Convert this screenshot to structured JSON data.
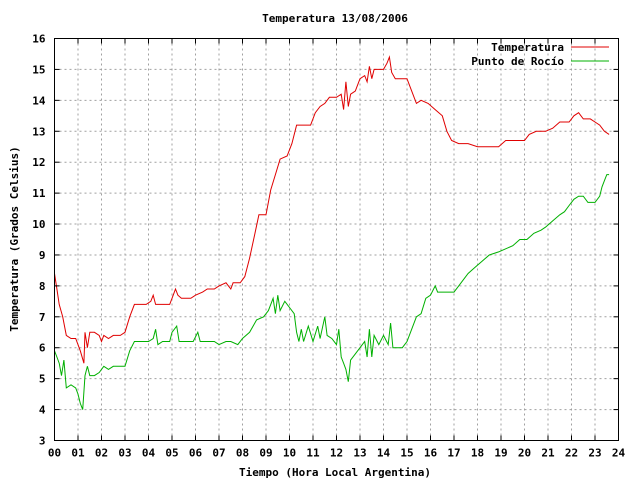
{
  "chart_data": {
    "type": "line",
    "title": "Temperatura 13/08/2006",
    "xlabel": "Tiempo (Hora Local Argentina)",
    "ylabel": "Temperatura (Grados Celsius)",
    "xlim": [
      0,
      24
    ],
    "ylim": [
      3,
      16
    ],
    "x_ticks": [
      "00",
      "01",
      "02",
      "03",
      "04",
      "05",
      "06",
      "07",
      "08",
      "09",
      "10",
      "11",
      "12",
      "13",
      "14",
      "15",
      "16",
      "17",
      "18",
      "19",
      "20",
      "21",
      "22",
      "23",
      "24"
    ],
    "y_ticks": [
      "3",
      "4",
      "5",
      "6",
      "7",
      "8",
      "9",
      "10",
      "11",
      "12",
      "13",
      "14",
      "15",
      "16"
    ],
    "grid": true,
    "legend_position": "top-right",
    "series": [
      {
        "name": "Temperatura",
        "color": "#e00000",
        "points": [
          [
            0.0,
            8.4
          ],
          [
            0.1,
            7.9
          ],
          [
            0.2,
            7.4
          ],
          [
            0.35,
            7.0
          ],
          [
            0.5,
            6.4
          ],
          [
            0.7,
            6.3
          ],
          [
            0.9,
            6.3
          ],
          [
            1.1,
            5.9
          ],
          [
            1.25,
            5.5
          ],
          [
            1.3,
            6.5
          ],
          [
            1.4,
            6.0
          ],
          [
            1.5,
            6.5
          ],
          [
            1.7,
            6.5
          ],
          [
            1.9,
            6.4
          ],
          [
            2.0,
            6.2
          ],
          [
            2.1,
            6.4
          ],
          [
            2.3,
            6.3
          ],
          [
            2.5,
            6.4
          ],
          [
            2.8,
            6.4
          ],
          [
            3.0,
            6.5
          ],
          [
            3.2,
            7.0
          ],
          [
            3.4,
            7.4
          ],
          [
            3.6,
            7.4
          ],
          [
            3.9,
            7.4
          ],
          [
            4.1,
            7.5
          ],
          [
            4.2,
            7.7
          ],
          [
            4.3,
            7.4
          ],
          [
            4.6,
            7.4
          ],
          [
            4.9,
            7.4
          ],
          [
            5.05,
            7.7
          ],
          [
            5.15,
            7.9
          ],
          [
            5.25,
            7.7
          ],
          [
            5.4,
            7.6
          ],
          [
            5.8,
            7.6
          ],
          [
            6.0,
            7.7
          ],
          [
            6.3,
            7.8
          ],
          [
            6.5,
            7.9
          ],
          [
            6.8,
            7.9
          ],
          [
            7.0,
            8.0
          ],
          [
            7.3,
            8.1
          ],
          [
            7.5,
            7.9
          ],
          [
            7.6,
            8.1
          ],
          [
            7.9,
            8.1
          ],
          [
            8.1,
            8.3
          ],
          [
            8.3,
            8.9
          ],
          [
            8.5,
            9.6
          ],
          [
            8.7,
            10.3
          ],
          [
            9.0,
            10.3
          ],
          [
            9.2,
            11.1
          ],
          [
            9.4,
            11.6
          ],
          [
            9.6,
            12.1
          ],
          [
            9.9,
            12.2
          ],
          [
            10.1,
            12.6
          ],
          [
            10.3,
            13.2
          ],
          [
            10.6,
            13.2
          ],
          [
            10.9,
            13.2
          ],
          [
            11.1,
            13.6
          ],
          [
            11.3,
            13.8
          ],
          [
            11.5,
            13.9
          ],
          [
            11.7,
            14.1
          ],
          [
            12.0,
            14.1
          ],
          [
            12.2,
            14.2
          ],
          [
            12.3,
            13.7
          ],
          [
            12.4,
            14.6
          ],
          [
            12.5,
            13.8
          ],
          [
            12.6,
            14.2
          ],
          [
            12.8,
            14.3
          ],
          [
            13.0,
            14.7
          ],
          [
            13.2,
            14.8
          ],
          [
            13.3,
            14.6
          ],
          [
            13.4,
            15.1
          ],
          [
            13.5,
            14.7
          ],
          [
            13.6,
            15.0
          ],
          [
            13.8,
            15.0
          ],
          [
            14.0,
            15.0
          ],
          [
            14.15,
            15.2
          ],
          [
            14.25,
            15.4
          ],
          [
            14.35,
            14.9
          ],
          [
            14.5,
            14.7
          ],
          [
            14.8,
            14.7
          ],
          [
            15.0,
            14.7
          ],
          [
            15.2,
            14.3
          ],
          [
            15.4,
            13.9
          ],
          [
            15.6,
            14.0
          ],
          [
            15.9,
            13.9
          ],
          [
            16.2,
            13.7
          ],
          [
            16.5,
            13.5
          ],
          [
            16.7,
            13.0
          ],
          [
            16.9,
            12.7
          ],
          [
            17.2,
            12.6
          ],
          [
            17.6,
            12.6
          ],
          [
            18.0,
            12.5
          ],
          [
            18.4,
            12.5
          ],
          [
            18.9,
            12.5
          ],
          [
            19.2,
            12.7
          ],
          [
            19.6,
            12.7
          ],
          [
            20.0,
            12.7
          ],
          [
            20.2,
            12.9
          ],
          [
            20.5,
            13.0
          ],
          [
            20.9,
            13.0
          ],
          [
            21.2,
            13.1
          ],
          [
            21.5,
            13.3
          ],
          [
            21.9,
            13.3
          ],
          [
            22.1,
            13.5
          ],
          [
            22.3,
            13.6
          ],
          [
            22.5,
            13.4
          ],
          [
            22.8,
            13.4
          ],
          [
            23.0,
            13.3
          ],
          [
            23.2,
            13.2
          ],
          [
            23.4,
            13.0
          ],
          [
            23.6,
            12.9
          ]
        ]
      },
      {
        "name": "Punto de Rocío",
        "color": "#00b000",
        "points": [
          [
            0.0,
            5.9
          ],
          [
            0.1,
            5.7
          ],
          [
            0.2,
            5.5
          ],
          [
            0.3,
            5.1
          ],
          [
            0.4,
            5.6
          ],
          [
            0.5,
            4.7
          ],
          [
            0.7,
            4.8
          ],
          [
            0.9,
            4.7
          ],
          [
            1.0,
            4.5
          ],
          [
            1.1,
            4.2
          ],
          [
            1.2,
            4.0
          ],
          [
            1.3,
            5.1
          ],
          [
            1.4,
            5.4
          ],
          [
            1.5,
            5.1
          ],
          [
            1.7,
            5.1
          ],
          [
            1.9,
            5.2
          ],
          [
            2.1,
            5.4
          ],
          [
            2.3,
            5.3
          ],
          [
            2.5,
            5.4
          ],
          [
            2.8,
            5.4
          ],
          [
            3.0,
            5.4
          ],
          [
            3.2,
            5.9
          ],
          [
            3.4,
            6.2
          ],
          [
            3.7,
            6.2
          ],
          [
            4.0,
            6.2
          ],
          [
            4.2,
            6.3
          ],
          [
            4.3,
            6.6
          ],
          [
            4.4,
            6.1
          ],
          [
            4.6,
            6.2
          ],
          [
            4.9,
            6.2
          ],
          [
            5.0,
            6.5
          ],
          [
            5.2,
            6.7
          ],
          [
            5.3,
            6.2
          ],
          [
            5.6,
            6.2
          ],
          [
            5.9,
            6.2
          ],
          [
            6.1,
            6.5
          ],
          [
            6.2,
            6.2
          ],
          [
            6.5,
            6.2
          ],
          [
            6.8,
            6.2
          ],
          [
            7.0,
            6.1
          ],
          [
            7.3,
            6.2
          ],
          [
            7.5,
            6.2
          ],
          [
            7.8,
            6.1
          ],
          [
            8.0,
            6.3
          ],
          [
            8.3,
            6.5
          ],
          [
            8.6,
            6.9
          ],
          [
            8.9,
            7.0
          ],
          [
            9.1,
            7.2
          ],
          [
            9.3,
            7.6
          ],
          [
            9.4,
            7.1
          ],
          [
            9.5,
            7.7
          ],
          [
            9.6,
            7.2
          ],
          [
            9.8,
            7.5
          ],
          [
            10.0,
            7.3
          ],
          [
            10.2,
            7.1
          ],
          [
            10.3,
            6.5
          ],
          [
            10.4,
            6.2
          ],
          [
            10.5,
            6.6
          ],
          [
            10.6,
            6.2
          ],
          [
            10.8,
            6.7
          ],
          [
            11.0,
            6.2
          ],
          [
            11.2,
            6.7
          ],
          [
            11.3,
            6.3
          ],
          [
            11.5,
            7.0
          ],
          [
            11.6,
            6.4
          ],
          [
            11.8,
            6.3
          ],
          [
            12.0,
            6.1
          ],
          [
            12.1,
            6.6
          ],
          [
            12.2,
            5.7
          ],
          [
            12.3,
            5.5
          ],
          [
            12.4,
            5.3
          ],
          [
            12.5,
            4.9
          ],
          [
            12.6,
            5.6
          ],
          [
            12.8,
            5.8
          ],
          [
            13.0,
            6.0
          ],
          [
            13.2,
            6.2
          ],
          [
            13.3,
            5.7
          ],
          [
            13.4,
            6.6
          ],
          [
            13.5,
            5.7
          ],
          [
            13.6,
            6.4
          ],
          [
            13.8,
            6.1
          ],
          [
            14.0,
            6.4
          ],
          [
            14.2,
            6.1
          ],
          [
            14.3,
            6.8
          ],
          [
            14.4,
            6.0
          ],
          [
            14.6,
            6.0
          ],
          [
            14.8,
            6.0
          ],
          [
            15.0,
            6.2
          ],
          [
            15.2,
            6.6
          ],
          [
            15.4,
            7.0
          ],
          [
            15.6,
            7.1
          ],
          [
            15.8,
            7.6
          ],
          [
            16.0,
            7.7
          ],
          [
            16.2,
            8.0
          ],
          [
            16.3,
            7.8
          ],
          [
            16.5,
            7.8
          ],
          [
            16.8,
            7.8
          ],
          [
            17.0,
            7.8
          ],
          [
            17.2,
            8.0
          ],
          [
            17.4,
            8.2
          ],
          [
            17.6,
            8.4
          ],
          [
            17.9,
            8.6
          ],
          [
            18.2,
            8.8
          ],
          [
            18.5,
            9.0
          ],
          [
            18.9,
            9.1
          ],
          [
            19.2,
            9.2
          ],
          [
            19.5,
            9.3
          ],
          [
            19.8,
            9.5
          ],
          [
            20.1,
            9.5
          ],
          [
            20.4,
            9.7
          ],
          [
            20.7,
            9.8
          ],
          [
            20.9,
            9.9
          ],
          [
            21.2,
            10.1
          ],
          [
            21.5,
            10.3
          ],
          [
            21.7,
            10.4
          ],
          [
            21.9,
            10.6
          ],
          [
            22.1,
            10.8
          ],
          [
            22.3,
            10.9
          ],
          [
            22.5,
            10.9
          ],
          [
            22.7,
            10.7
          ],
          [
            23.0,
            10.7
          ],
          [
            23.2,
            10.9
          ],
          [
            23.3,
            11.2
          ],
          [
            23.4,
            11.4
          ],
          [
            23.5,
            11.6
          ],
          [
            23.6,
            11.6
          ]
        ]
      }
    ]
  }
}
